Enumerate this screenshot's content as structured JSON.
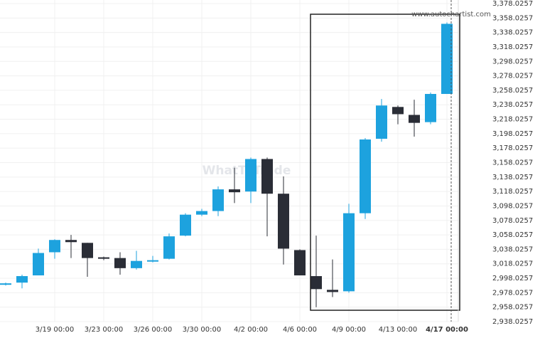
{
  "chart_data": {
    "type": "candlestick",
    "watermark": "www.autochartist.com",
    "logo": "WhatToTrade",
    "categories": [
      null,
      null,
      null,
      "3/19 00:00",
      null,
      null,
      "3/23 00:00",
      null,
      null,
      "3/26 00:00",
      null,
      null,
      "3/30 00:00",
      null,
      null,
      "4/2 00:00",
      null,
      null,
      "4/6 00:00",
      null,
      null,
      "4/9 00:00",
      null,
      null,
      "4/13 00:00",
      null,
      null,
      "4/17 00:00"
    ],
    "open": [
      2989,
      2992,
      3002,
      3034,
      3051,
      3047,
      3027,
      3026,
      3012,
      3022,
      3025,
      3057,
      3086,
      3091,
      3121,
      3118,
      3163,
      3115,
      3037,
      3001,
      2982,
      2980,
      3088,
      3191,
      3235,
      3224,
      3214,
      3253
    ],
    "high": [
      2992,
      3003,
      3039,
      3052,
      3058,
      3047,
      3028,
      3034,
      3036,
      3029,
      3060,
      3088,
      3094,
      3125,
      3151,
      3165,
      3165,
      3139,
      3038,
      3057,
      3024,
      3101,
      3192,
      3246,
      3237,
      3245,
      3255,
      3352
    ],
    "low": [
      2988,
      2984,
      3002,
      3025,
      3026,
      3000,
      3023,
      3003,
      3010,
      3020,
      3024,
      3056,
      3084,
      3084,
      3102,
      3102,
      3056,
      3017,
      3002,
      2958,
      2972,
      2978,
      3080,
      3187,
      3211,
      3194,
      3211,
      3253
    ],
    "close": [
      2991,
      3001,
      3033,
      3051,
      3048,
      3026,
      3025,
      3012,
      3022,
      3023,
      3056,
      3086,
      3091,
      3121,
      3117,
      3163,
      3115,
      3039,
      3002,
      2983,
      2979,
      3088,
      3190,
      3237,
      3225,
      3213,
      3253,
      3350
    ],
    "up_color": "#1da2de",
    "down_color": "#2a2d36",
    "ylim": [
      2938.0257,
      3378.0257
    ],
    "yticks": [
      {
        "value": 2938.0257,
        "label": "2,938.0257"
      },
      {
        "value": 2958.0257,
        "label": "2,958.0257"
      },
      {
        "value": 2978.0257,
        "label": "2,978.0257"
      },
      {
        "value": 2998.0257,
        "label": "2,998.0257"
      },
      {
        "value": 3018.0257,
        "label": "3,018.0257"
      },
      {
        "value": 3038.0257,
        "label": "3,038.0257"
      },
      {
        "value": 3058.0257,
        "label": "3,058.0257"
      },
      {
        "value": 3078.0257,
        "label": "3,078.0257"
      },
      {
        "value": 3098.0257,
        "label": "3,098.0257"
      },
      {
        "value": 3118.0257,
        "label": "3,118.0257"
      },
      {
        "value": 3138.0257,
        "label": "3,138.0257"
      },
      {
        "value": 3158.0257,
        "label": "3,158.0257"
      },
      {
        "value": 3178.0257,
        "label": "3,178.0257"
      },
      {
        "value": 3198.0257,
        "label": "3,198.0257"
      },
      {
        "value": 3218.0257,
        "label": "3,218.0257"
      },
      {
        "value": 3238.0257,
        "label": "3,238.0257"
      },
      {
        "value": 3258.0257,
        "label": "3,258.0257"
      },
      {
        "value": 3278.0257,
        "label": "3,278.0257"
      },
      {
        "value": 3298.0257,
        "label": "3,298.0257"
      },
      {
        "value": 3318.0257,
        "label": "3,318.0257"
      },
      {
        "value": 3338.0257,
        "label": "3,338.0257"
      },
      {
        "value": 3358.0257,
        "label": "3,358.0257"
      },
      {
        "value": 3378.0257,
        "label": "3,378.0257"
      }
    ],
    "grid": true
  }
}
